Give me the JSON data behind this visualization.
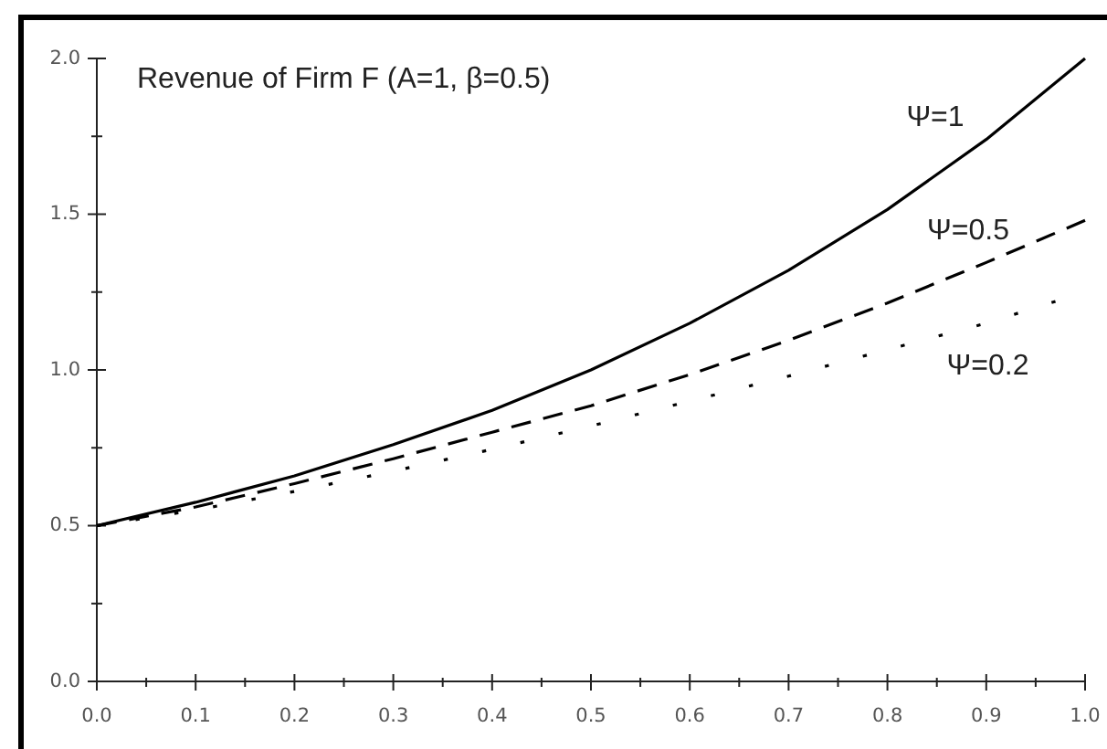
{
  "chart_data": {
    "type": "line",
    "title": "Revenue of Firm F (A=1, β=0.5)",
    "xlim": [
      0,
      1
    ],
    "ylim": [
      0,
      2
    ],
    "xticks": [
      {
        "value": 0,
        "label": "0.0"
      },
      {
        "value": 0.05,
        "label": null
      },
      {
        "value": 0.1,
        "label": "0.1"
      },
      {
        "value": 0.15,
        "label": null
      },
      {
        "value": 0.2,
        "label": "0.2"
      },
      {
        "value": 0.25,
        "label": null
      },
      {
        "value": 0.3,
        "label": "0.3"
      },
      {
        "value": 0.35,
        "label": null
      },
      {
        "value": 0.4,
        "label": "0.4"
      },
      {
        "value": 0.45,
        "label": null
      },
      {
        "value": 0.5,
        "label": "0.5"
      },
      {
        "value": 0.55,
        "label": null
      },
      {
        "value": 0.6,
        "label": "0.6"
      },
      {
        "value": 0.65,
        "label": null
      },
      {
        "value": 0.7,
        "label": "0.7"
      },
      {
        "value": 0.75,
        "label": null
      },
      {
        "value": 0.8,
        "label": "0.8"
      },
      {
        "value": 0.85,
        "label": null
      },
      {
        "value": 0.9,
        "label": "0.9"
      },
      {
        "value": 0.95,
        "label": null
      },
      {
        "value": 1,
        "label": "1.0"
      }
    ],
    "yticks": [
      {
        "value": 0,
        "label": "0.0"
      },
      {
        "value": 0.25,
        "label": null
      },
      {
        "value": 0.5,
        "label": "0.5"
      },
      {
        "value": 0.75,
        "label": null
      },
      {
        "value": 1,
        "label": "1.0"
      },
      {
        "value": 1.25,
        "label": null
      },
      {
        "value": 1.5,
        "label": "1.5"
      },
      {
        "value": 1.75,
        "label": null
      },
      {
        "value": 2,
        "label": "2.0"
      }
    ],
    "series": [
      {
        "name": "Ψ=1",
        "color": "#000000",
        "line_style": "solid",
        "x": [
          0,
          0.1,
          0.2,
          0.3,
          0.4,
          0.5,
          0.6,
          0.7,
          0.8,
          0.9,
          1
        ],
        "values": [
          0.5,
          0.575,
          0.66,
          0.76,
          0.87,
          1.0,
          1.15,
          1.32,
          1.515,
          1.74,
          2.0
        ]
      },
      {
        "name": "Ψ=0.5",
        "color": "#000000",
        "line_style": "dashed",
        "x": [
          0,
          0.1,
          0.2,
          0.3,
          0.4,
          0.5,
          0.6,
          0.7,
          0.8,
          0.9,
          1
        ],
        "values": [
          0.5,
          0.56,
          0.635,
          0.715,
          0.8,
          0.885,
          0.985,
          1.095,
          1.215,
          1.345,
          1.48
        ]
      },
      {
        "name": "Ψ=0.2",
        "color": "#000000",
        "line_style": "dotted",
        "x": [
          0,
          0.1,
          0.2,
          0.3,
          0.4,
          0.5,
          0.6,
          0.7,
          0.8,
          0.9,
          0.97
        ],
        "values": [
          0.5,
          0.55,
          0.61,
          0.675,
          0.745,
          0.82,
          0.9,
          0.98,
          1.065,
          1.15,
          1.22
        ]
      }
    ]
  }
}
